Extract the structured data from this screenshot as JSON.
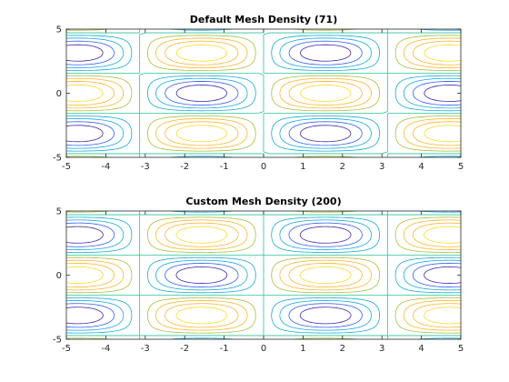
{
  "colors": {
    "background": "#ffffff",
    "axes_frame": "#262626",
    "colormap": [
      "#3e26a8",
      "#2f5dfe",
      "#14a8da",
      "#2bc39c",
      "#a6be37",
      "#fbb42f",
      "#f9db2a"
    ]
  },
  "chart_data": [
    {
      "type": "contour",
      "title": "Default Mesh Density (71)",
      "function": "sin(x)*cos(y)",
      "mesh_density": 71,
      "xlim": [
        -5,
        5
      ],
      "ylim": [
        -5,
        5
      ],
      "xticks": [
        -5,
        -4,
        -3,
        -2,
        -1,
        0,
        1,
        2,
        3,
        4,
        5
      ],
      "xtick_labels": [
        "-5",
        "-4",
        "-3",
        "-2",
        "-1",
        "0",
        "1",
        "2",
        "3",
        "4",
        "5"
      ],
      "yticks": [
        -5,
        0,
        5
      ],
      "ytick_labels": [
        "-5",
        "0",
        "5"
      ],
      "levels": [
        -0.8,
        -0.6,
        -0.4,
        -0.2,
        0,
        0.2,
        0.4,
        0.6,
        0.8
      ],
      "grid": false,
      "legend": "none"
    },
    {
      "type": "contour",
      "title": "Custom Mesh Density (200)",
      "function": "sin(x)*cos(y)",
      "mesh_density": 200,
      "xlim": [
        -5,
        5
      ],
      "ylim": [
        -5,
        5
      ],
      "xticks": [
        -5,
        -4,
        -3,
        -2,
        -1,
        0,
        1,
        2,
        3,
        4,
        5
      ],
      "xtick_labels": [
        "-5",
        "-4",
        "-3",
        "-2",
        "-1",
        "0",
        "1",
        "2",
        "3",
        "4",
        "5"
      ],
      "yticks": [
        -5,
        0,
        5
      ],
      "ytick_labels": [
        "-5",
        "0",
        "5"
      ],
      "levels": [
        -0.8,
        -0.6,
        -0.4,
        -0.2,
        0,
        0.2,
        0.4,
        0.6,
        0.8
      ],
      "grid": false,
      "legend": "none"
    }
  ]
}
